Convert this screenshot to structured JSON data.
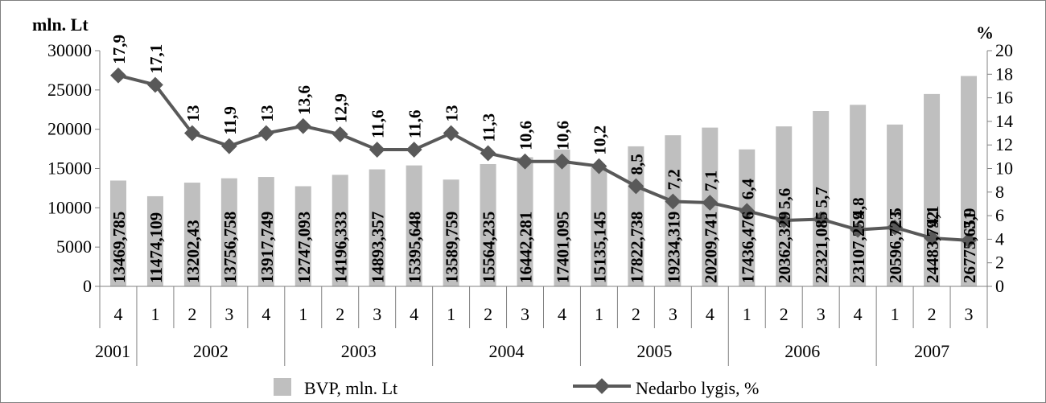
{
  "chart_data": {
    "type": "bar",
    "left_axis_title": "mln. Lt",
    "right_axis_title": "%",
    "left_ticks": [
      "0",
      "5000",
      "10000",
      "15000",
      "20000",
      "25000",
      "30000"
    ],
    "right_ticks": [
      "0",
      "2",
      "4",
      "6",
      "8",
      "10",
      "12",
      "14",
      "16",
      "18",
      "20"
    ],
    "ylim_left": [
      0,
      30000
    ],
    "ylim_right": [
      0,
      20
    ],
    "quarters": [
      "4",
      "1",
      "2",
      "3",
      "4",
      "1",
      "2",
      "3",
      "4",
      "1",
      "2",
      "3",
      "4",
      "1",
      "2",
      "3",
      "4",
      "1",
      "2",
      "3",
      "4",
      "1",
      "2",
      "3"
    ],
    "years": [
      {
        "label": "2001",
        "count": 1
      },
      {
        "label": "2002",
        "count": 4
      },
      {
        "label": "2003",
        "count": 4
      },
      {
        "label": "2004",
        "count": 4
      },
      {
        "label": "2005",
        "count": 4
      },
      {
        "label": "2006",
        "count": 4
      },
      {
        "label": "2007",
        "count": 3
      }
    ],
    "series": [
      {
        "name": "BVP, mln. Lt",
        "kind": "bar",
        "axis": "left",
        "color": "#bfbfbf",
        "values": [
          13469.785,
          11474.109,
          13202.43,
          13756.758,
          13917.749,
          12747.093,
          14196.333,
          14893.357,
          15395.648,
          13589.759,
          15564.235,
          16442.281,
          17401.095,
          15135.145,
          17822.738,
          19234.319,
          20209.741,
          17436.476,
          20362.329,
          22321.085,
          23107.259,
          20596.723,
          24483.792,
          26775.651
        ],
        "labels": [
          "13469,785",
          "11474,109",
          "13202,43",
          "13756,758",
          "13917,749",
          "12747,093",
          "14196,333",
          "14893,357",
          "15395,648",
          "13589,759",
          "15564,235",
          "16442,281",
          "17401,095",
          "15135,145",
          "17822,738",
          "19234,319",
          "20209,741",
          "17436,476",
          "20362,329",
          "22321,085",
          "23107,259",
          "20596,723",
          "24483,792",
          "26775,651"
        ]
      },
      {
        "name": "Nedarbo lygis, %",
        "kind": "line",
        "axis": "right",
        "color": "#595959",
        "values": [
          17.9,
          17.1,
          13,
          11.9,
          13,
          13.6,
          12.9,
          11.6,
          11.6,
          13,
          11.3,
          10.6,
          10.6,
          10.2,
          8.5,
          7.2,
          7.1,
          6.4,
          5.6,
          5.7,
          4.8,
          5,
          4.1,
          3.9
        ],
        "labels": [
          "17,9",
          "17,1",
          "13",
          "11,9",
          "13",
          "13,6",
          "12,9",
          "11,6",
          "11,6",
          "13",
          "11,3",
          "10,6",
          "10,6",
          "10,2",
          "8,5",
          "7,2",
          "7,1",
          "6,4",
          "5,6",
          "5,7",
          "4,8",
          "5",
          "4,1",
          "3,9"
        ]
      }
    ],
    "legend_position": "bottom",
    "grid": false
  }
}
